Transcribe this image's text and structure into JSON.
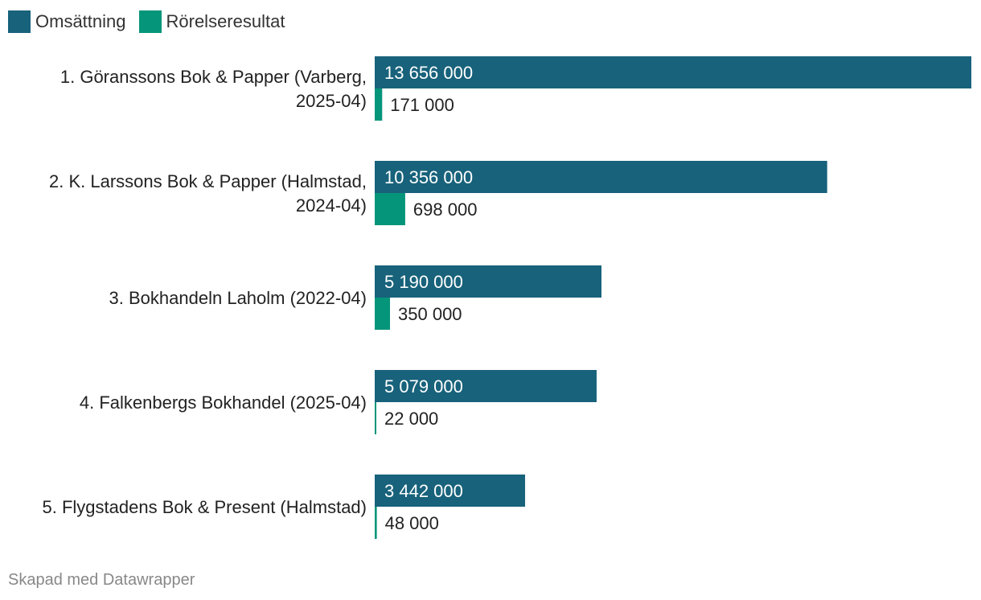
{
  "legend": {
    "revenue_label": "Omsättning",
    "result_label": "Rörelseresultat"
  },
  "colors": {
    "revenue": "#18627b",
    "result": "#05957a",
    "label_on_bar": "#ffffff",
    "label_off_bar": "#222222"
  },
  "chart_data": {
    "type": "bar",
    "orientation": "horizontal",
    "title": "",
    "xlabel": "",
    "ylabel": "",
    "xlim": [
      0,
      13656000
    ],
    "grid": false,
    "legend_position": "top-left",
    "categories": [
      [
        "1. Göranssons Bok & Papper (Varberg,",
        "2025-04)"
      ],
      [
        "2. K. Larssons Bok & Papper (Halmstad,",
        "2024-04)"
      ],
      [
        "3. Bokhandeln Laholm (2022-04)"
      ],
      [
        "4. Falkenbergs Bokhandel (2025-04)"
      ],
      [
        "5. Flygstadens Bok & Present (Halmstad)"
      ]
    ],
    "series": [
      {
        "name": "Omsättning",
        "values": [
          13656000,
          10356000,
          5190000,
          5079000,
          3442000
        ],
        "labels": [
          "13 656 000",
          "10 356 000",
          "5 190 000",
          "5 079 000",
          "3 442 000"
        ]
      },
      {
        "name": "Rörelseresultat",
        "values": [
          171000,
          698000,
          350000,
          22000,
          48000
        ],
        "labels": [
          "171 000",
          "698 000",
          "350 000",
          "22 000",
          "48 000"
        ]
      }
    ]
  },
  "footer": {
    "credit": "Skapad med Datawrapper"
  }
}
